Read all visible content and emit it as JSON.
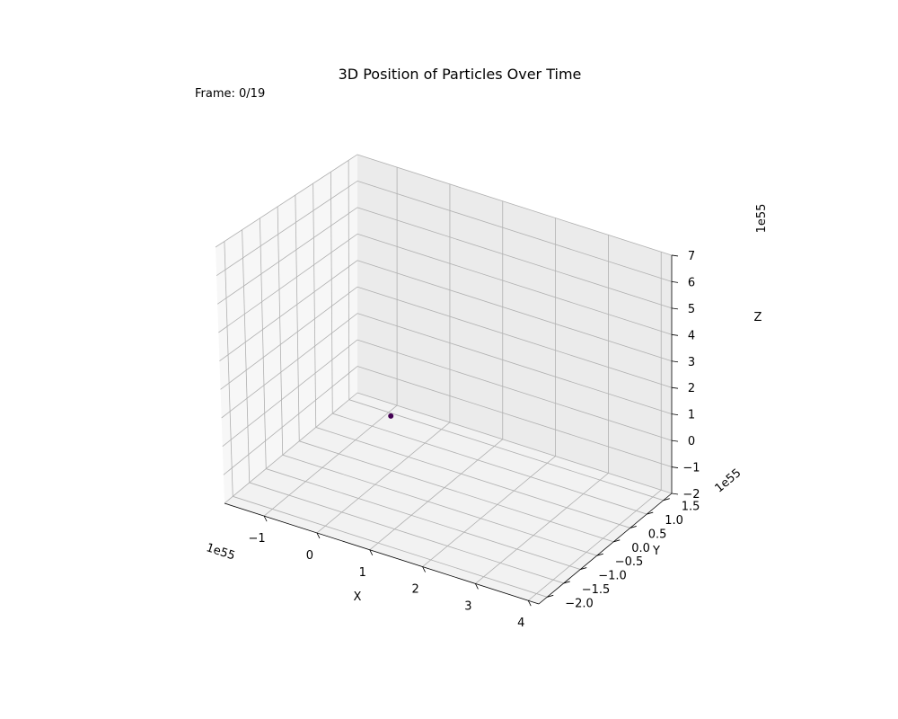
{
  "chart_data": {
    "type": "scatter",
    "projection": "3d",
    "title": "3D Position of Particles Over Time",
    "annotation": "Frame: 0/19",
    "xlabel": "X",
    "ylabel": "Y",
    "zlabel": "Z",
    "x_offset_text": "1e55",
    "y_offset_text": "1e55",
    "z_offset_text": "1e55",
    "xlim": [
      -1.75,
      4.2
    ],
    "ylim": [
      -2.25,
      1.75
    ],
    "zlim": [
      -2.0,
      7.0
    ],
    "x_ticks": [
      -1,
      0,
      1,
      2,
      3,
      4
    ],
    "x_tick_labels": [
      "−1",
      "0",
      "1",
      "2",
      "3",
      "4"
    ],
    "y_ticks": [
      -2.0,
      -1.5,
      -1.0,
      -0.5,
      0.0,
      0.5,
      1.0,
      1.5
    ],
    "y_tick_labels": [
      "−2.0",
      "−1.5",
      "−1.0",
      "−0.5",
      "0.0",
      "0.5",
      "1.0",
      "1.5"
    ],
    "z_ticks": [
      -2,
      -1,
      0,
      1,
      2,
      3,
      4,
      5,
      6,
      7
    ],
    "z_tick_labels": [
      "−2",
      "−1",
      "0",
      "1",
      "2",
      "3",
      "4",
      "5",
      "6",
      "7"
    ],
    "grid": true,
    "point_color": "#440154",
    "points": [
      {
        "x": 0,
        "y": 0,
        "z": 0
      }
    ]
  }
}
